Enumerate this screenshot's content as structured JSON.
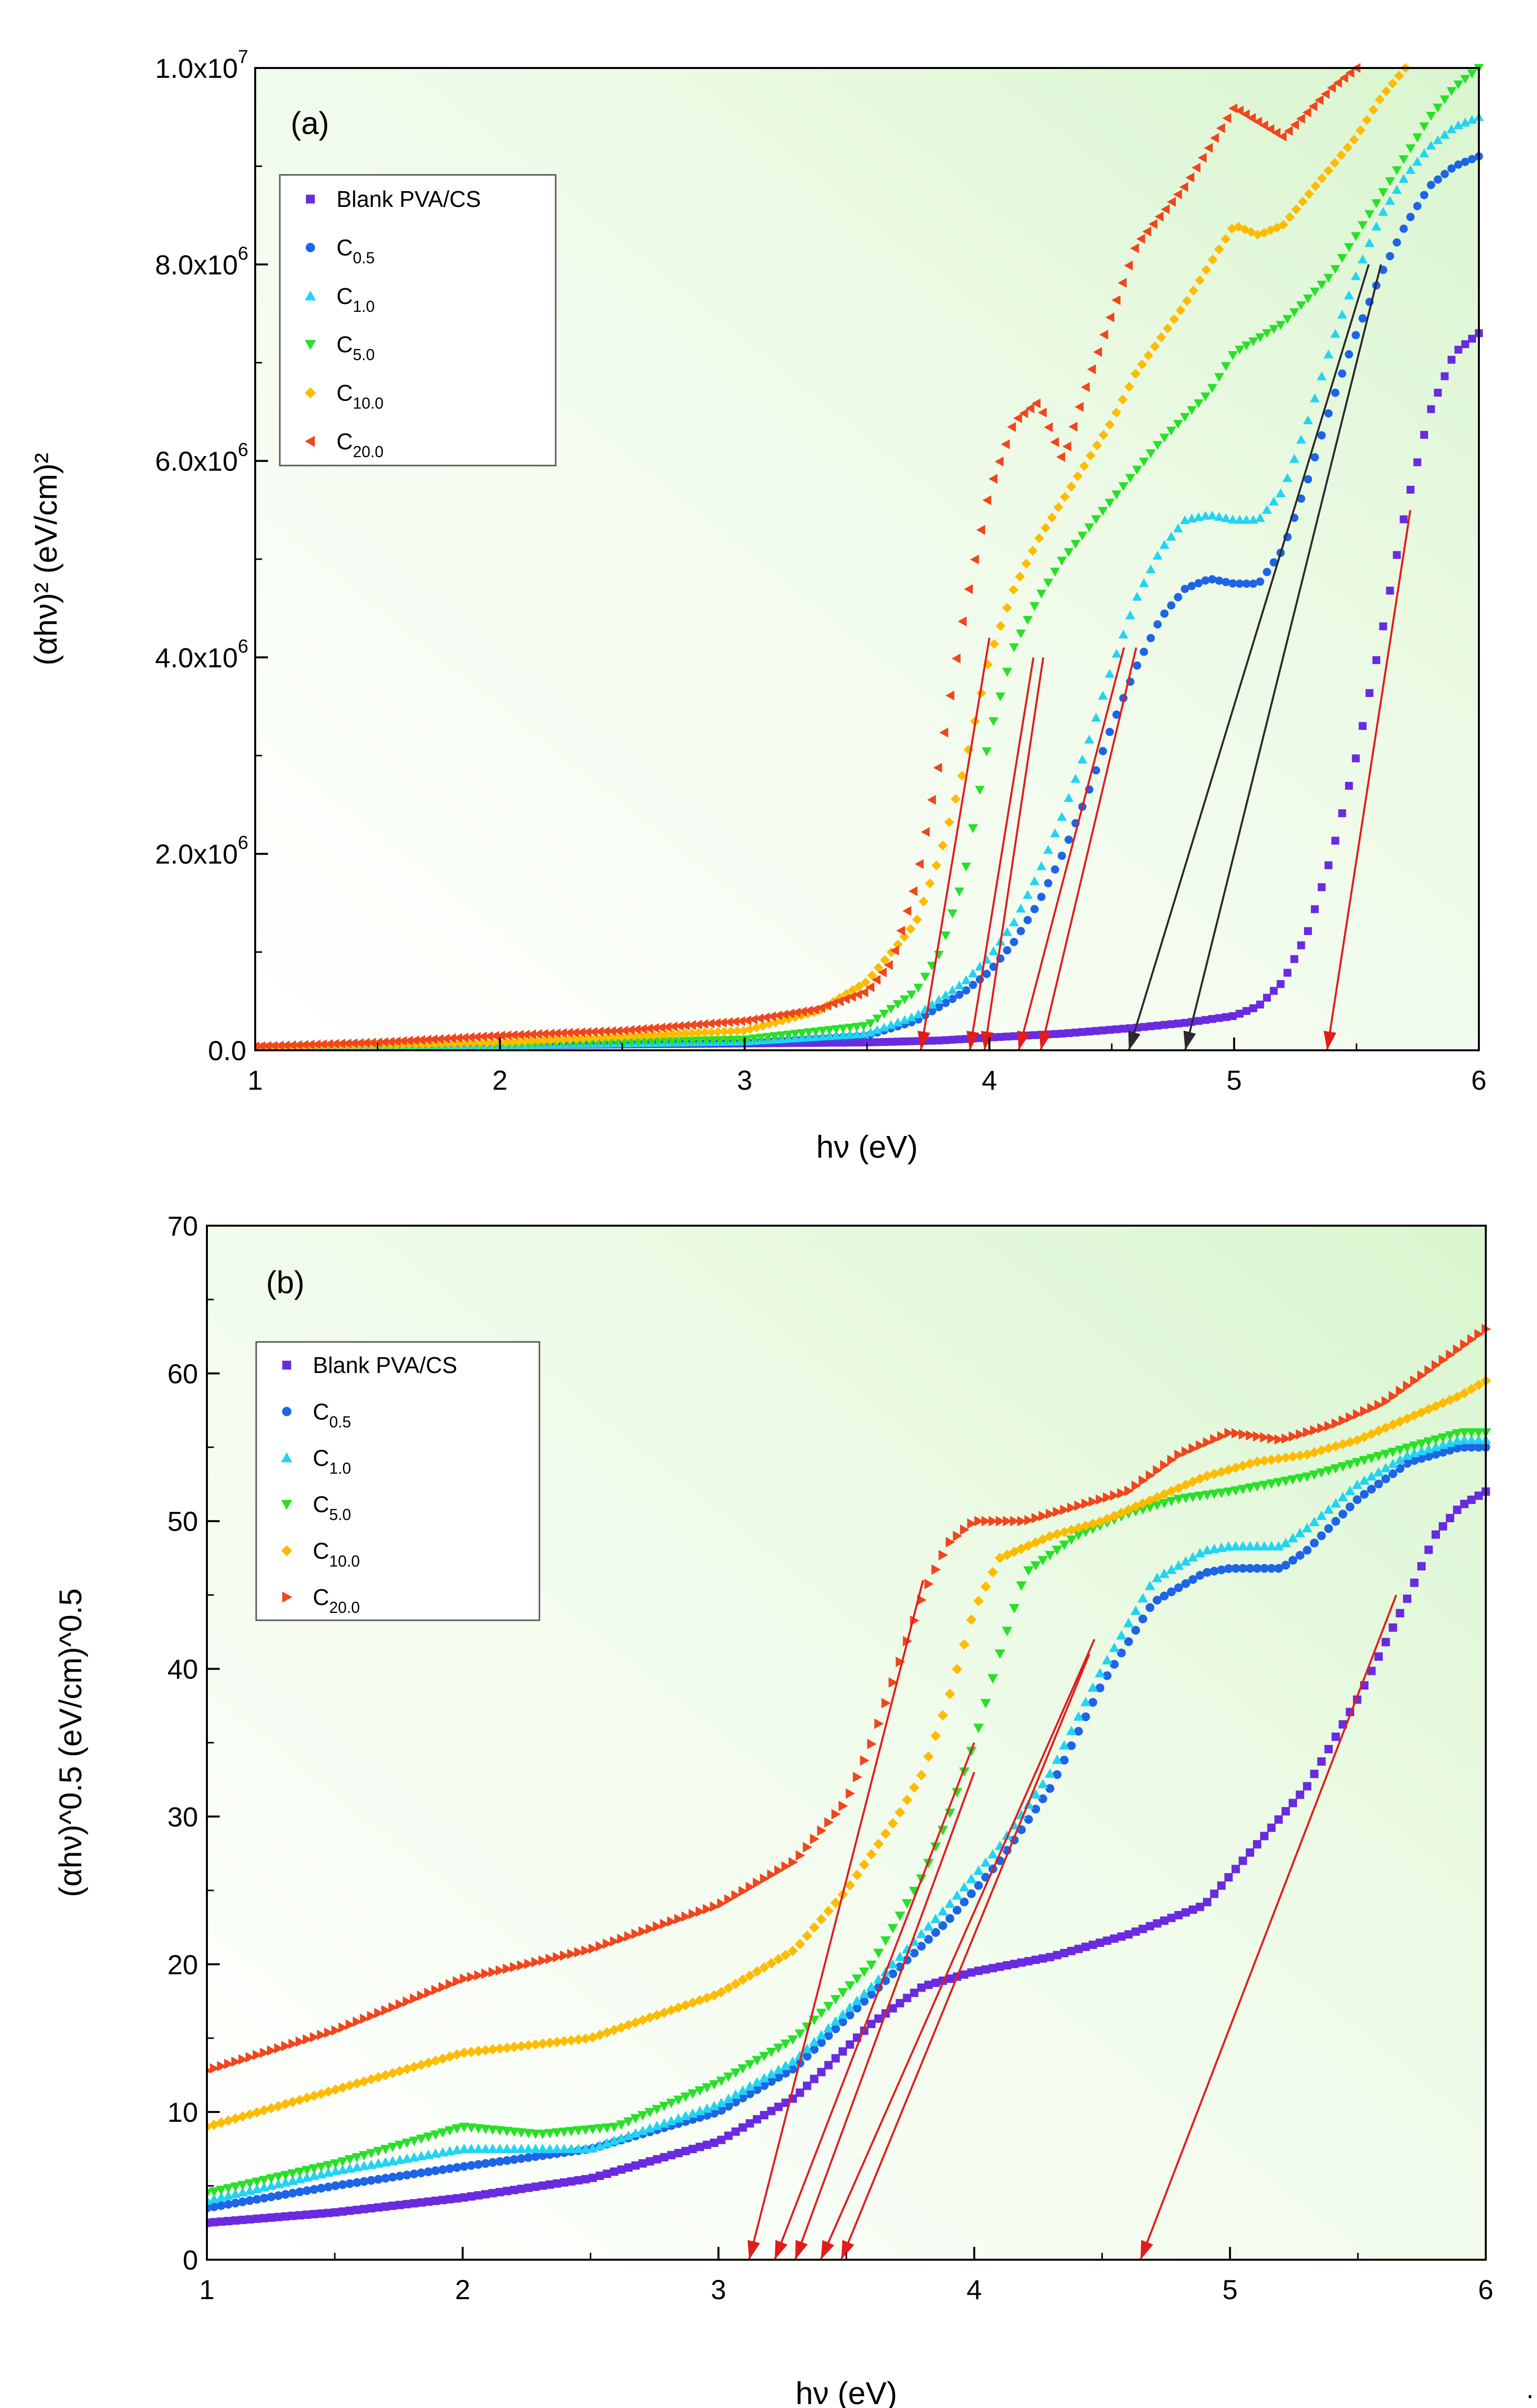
{
  "figure_trailing_mark": ".",
  "chart_data": [
    {
      "type": "scatter",
      "panel_label": "(a)",
      "xlabel": "hν (eV)",
      "ylabel": "(αhν)² (eV/cm)²",
      "xlim": [
        1,
        6
      ],
      "ylim": [
        0,
        10000000
      ],
      "x_ticks": [
        "1",
        "2",
        "3",
        "4",
        "5",
        "6"
      ],
      "y_ticks": [
        {
          "value": 0,
          "mant": "0.0",
          "exp": ""
        },
        {
          "value": 2000000,
          "mant": "2.0x10",
          "exp": "6"
        },
        {
          "value": 4000000,
          "mant": "4.0x10",
          "exp": "6"
        },
        {
          "value": 6000000,
          "mant": "6.0x10",
          "exp": "6"
        },
        {
          "value": 8000000,
          "mant": "8.0x10",
          "exp": "6"
        },
        {
          "value": 10000000,
          "mant": "1.0x10",
          "exp": "7"
        }
      ],
      "legend_position": "top-left",
      "series": [
        {
          "name": "Blank PVA/CS",
          "base": "Blank PVA/CS",
          "sub": "",
          "color": "#6a2be0",
          "marker": "square",
          "x": [
            1.0,
            1.5,
            2.0,
            2.5,
            3.0,
            3.5,
            3.8,
            4.0,
            4.3,
            4.6,
            4.8,
            5.0,
            5.1,
            5.2,
            5.3,
            5.4,
            5.5,
            5.6,
            5.7,
            5.8,
            5.9,
            6.0
          ],
          "y": [
            30000,
            40000,
            50000,
            60000,
            70000,
            80000,
            100000,
            130000,
            170000,
            230000,
            280000,
            350000,
            450000,
            700000,
            1200000,
            2000000,
            3000000,
            4200000,
            5500000,
            6500000,
            7100000,
            7300000
          ]
        },
        {
          "name": "C0.5",
          "base": "C",
          "sub": "0.5",
          "color": "#1e64e6",
          "marker": "circle",
          "x": [
            1.0,
            2.0,
            3.0,
            3.5,
            3.7,
            3.9,
            4.0,
            4.1,
            4.2,
            4.3,
            4.4,
            4.5,
            4.6,
            4.7,
            4.8,
            4.9,
            5.0,
            5.1,
            5.2,
            5.3,
            5.4,
            5.5,
            5.6,
            5.7,
            5.8,
            5.9,
            6.0
          ],
          "y": [
            30000,
            50000,
            80000,
            150000,
            300000,
            600000,
            800000,
            1100000,
            1500000,
            2000000,
            2600000,
            3300000,
            3900000,
            4400000,
            4700000,
            4800000,
            4750000,
            4750000,
            5100000,
            5800000,
            6600000,
            7300000,
            7900000,
            8400000,
            8800000,
            9000000,
            9100000
          ]
        },
        {
          "name": "C1.0",
          "base": "C",
          "sub": "1.0",
          "color": "#22d4f2",
          "marker": "triangle-up",
          "x": [
            1.0,
            2.0,
            3.0,
            3.5,
            3.7,
            3.9,
            4.0,
            4.1,
            4.2,
            4.3,
            4.4,
            4.5,
            4.6,
            4.7,
            4.8,
            4.9,
            5.0,
            5.1,
            5.2,
            5.3,
            5.4,
            5.5,
            5.6,
            5.7,
            5.8,
            5.9,
            6.0
          ],
          "y": [
            30000,
            50000,
            90000,
            170000,
            350000,
            700000,
            950000,
            1300000,
            1800000,
            2400000,
            3100000,
            3900000,
            4600000,
            5100000,
            5400000,
            5450000,
            5400000,
            5400000,
            5700000,
            6400000,
            7200000,
            7900000,
            8500000,
            8900000,
            9200000,
            9400000,
            9500000
          ]
        },
        {
          "name": "C5.0",
          "base": "C",
          "sub": "5.0",
          "color": "#28e028",
          "marker": "triangle-down",
          "x": [
            1.0,
            2.0,
            3.0,
            3.5,
            3.7,
            3.8,
            3.9,
            4.0,
            4.1,
            4.2,
            4.3,
            4.5,
            4.7,
            4.9,
            5.0,
            5.2,
            5.4,
            5.6,
            5.8,
            5.9,
            6.0
          ],
          "y": [
            30000,
            60000,
            110000,
            250000,
            600000,
            1000000,
            1800000,
            3200000,
            4100000,
            4600000,
            5000000,
            5600000,
            6200000,
            6700000,
            7100000,
            7400000,
            7900000,
            8700000,
            9500000,
            9800000,
            10000000
          ]
        },
        {
          "name": "C10.0",
          "base": "C",
          "sub": "10.0",
          "color": "#ffbb00",
          "marker": "diamond",
          "x": [
            1.0,
            2.0,
            3.0,
            3.3,
            3.5,
            3.7,
            3.8,
            3.9,
            4.0,
            4.1,
            4.2,
            4.3,
            4.4,
            4.5,
            4.6,
            4.8,
            5.0,
            5.1,
            5.2,
            5.4,
            5.5,
            5.6,
            5.7
          ],
          "y": [
            30000,
            80000,
            200000,
            400000,
            700000,
            1300000,
            2000000,
            2900000,
            4000000,
            4700000,
            5200000,
            5600000,
            6000000,
            6400000,
            6900000,
            7600000,
            8400000,
            8300000,
            8400000,
            9000000,
            9300000,
            9700000,
            10000000
          ]
        },
        {
          "name": "C20.0",
          "base": "C",
          "sub": "20.0",
          "color": "#f0461e",
          "marker": "triangle-left",
          "x": [
            1.0,
            1.5,
            2.0,
            2.5,
            3.0,
            3.3,
            3.5,
            3.6,
            3.7,
            3.8,
            3.9,
            4.0,
            4.1,
            4.2,
            4.3,
            4.4,
            4.5,
            4.6,
            4.8,
            5.0,
            5.2,
            5.4,
            5.5
          ],
          "y": [
            40000,
            80000,
            150000,
            200000,
            300000,
            420000,
            600000,
            900000,
            1700000,
            3000000,
            4500000,
            5700000,
            6400000,
            6600000,
            6000000,
            6800000,
            7500000,
            8200000,
            8800000,
            9600000,
            9300000,
            9800000,
            10000000
          ]
        }
      ],
      "tangent_lines": [
        {
          "color": "#e11c1c",
          "from": [
            4.0,
            4200000
          ],
          "to": [
            3.72,
            0
          ]
        },
        {
          "color": "#e11c1c",
          "from": [
            4.18,
            4000000
          ],
          "to": [
            3.92,
            0
          ]
        },
        {
          "color": "#e11c1c",
          "from": [
            4.22,
            4000000
          ],
          "to": [
            3.98,
            0
          ]
        },
        {
          "color": "#e11c1c",
          "from": [
            4.55,
            4100000
          ],
          "to": [
            4.12,
            0
          ]
        },
        {
          "color": "#e11c1c",
          "from": [
            4.6,
            4100000
          ],
          "to": [
            4.21,
            0
          ]
        },
        {
          "color": "#e11c1c",
          "from": [
            5.72,
            5500000
          ],
          "to": [
            5.38,
            0
          ]
        },
        {
          "color": "#2a2a2a",
          "from": [
            5.55,
            8000000
          ],
          "to": [
            4.57,
            0
          ]
        },
        {
          "color": "#2a2a2a",
          "from": [
            5.6,
            8000000
          ],
          "to": [
            4.8,
            0
          ]
        }
      ]
    },
    {
      "type": "scatter",
      "panel_label": "(b)",
      "xlabel": "hν (eV)",
      "ylabel": "(αhν)^0.5 (eV/cm)^0.5",
      "xlim": [
        1,
        6
      ],
      "ylim": [
        0,
        70
      ],
      "x_ticks": [
        "1",
        "2",
        "3",
        "4",
        "5",
        "6"
      ],
      "y_ticks": [
        {
          "value": 0,
          "mant": "0",
          "exp": ""
        },
        {
          "value": 10,
          "mant": "10",
          "exp": ""
        },
        {
          "value": 20,
          "mant": "20",
          "exp": ""
        },
        {
          "value": 30,
          "mant": "30",
          "exp": ""
        },
        {
          "value": 40,
          "mant": "40",
          "exp": ""
        },
        {
          "value": 50,
          "mant": "50",
          "exp": ""
        },
        {
          "value": 60,
          "mant": "60",
          "exp": ""
        },
        {
          "value": 70,
          "mant": "70",
          "exp": ""
        }
      ],
      "legend_position": "top-left",
      "series": [
        {
          "name": "Blank PVA/CS",
          "base": "Blank PVA/CS",
          "sub": "",
          "color": "#6a2be0",
          "marker": "square",
          "x": [
            1.0,
            1.5,
            2.0,
            2.5,
            3.0,
            3.3,
            3.6,
            3.8,
            4.0,
            4.3,
            4.6,
            4.9,
            5.1,
            5.3,
            5.5,
            5.7,
            5.8,
            5.9,
            6.0
          ],
          "y": [
            2.5,
            3.2,
            4.2,
            5.5,
            8.0,
            11.0,
            16.0,
            18.5,
            19.5,
            20.5,
            22.0,
            24.0,
            28.0,
            32.0,
            38.0,
            45.0,
            49.0,
            51.0,
            52.0
          ]
        },
        {
          "name": "C0.5",
          "base": "C",
          "sub": "0.5",
          "color": "#1e64e6",
          "marker": "circle",
          "x": [
            1.0,
            1.5,
            2.0,
            2.5,
            3.0,
            3.3,
            3.6,
            3.9,
            4.1,
            4.3,
            4.5,
            4.7,
            4.9,
            5.0,
            5.2,
            5.3,
            5.5,
            5.7,
            5.9,
            6.0
          ],
          "y": [
            3.5,
            5.0,
            6.3,
            7.5,
            10.0,
            13.0,
            18.0,
            23.0,
            27.0,
            32.0,
            39.0,
            44.5,
            46.5,
            46.8,
            46.8,
            48.0,
            51.5,
            54.0,
            55.0,
            55.0
          ]
        },
        {
          "name": "C1.0",
          "base": "C",
          "sub": "1.0",
          "color": "#22d4f2",
          "marker": "triangle-up",
          "x": [
            1.0,
            1.5,
            2.0,
            2.5,
            3.0,
            3.3,
            3.6,
            3.9,
            4.1,
            4.3,
            4.5,
            4.7,
            4.9,
            5.0,
            5.2,
            5.3,
            5.5,
            5.7,
            5.9,
            6.0
          ],
          "y": [
            4.0,
            6.0,
            7.5,
            7.5,
            10.5,
            13.5,
            18.5,
            24.0,
            28.0,
            33.0,
            40.0,
            46.0,
            48.0,
            48.3,
            48.3,
            49.5,
            52.5,
            54.5,
            55.5,
            55.5
          ]
        },
        {
          "name": "C5.0",
          "base": "C",
          "sub": "5.0",
          "color": "#28e028",
          "marker": "triangle-down",
          "x": [
            1.0,
            1.5,
            2.0,
            2.3,
            2.6,
            3.0,
            3.3,
            3.6,
            3.8,
            3.9,
            4.0,
            4.1,
            4.2,
            4.4,
            4.6,
            4.8,
            5.0,
            5.3,
            5.6,
            5.9,
            6.0
          ],
          "y": [
            4.5,
            6.5,
            9.0,
            8.5,
            9.0,
            12.0,
            15.0,
            20.0,
            26.0,
            30.0,
            35.0,
            41.0,
            46.5,
            49.0,
            50.5,
            51.5,
            52.0,
            53.0,
            54.5,
            56.0,
            56.0
          ]
        },
        {
          "name": "C10.0",
          "base": "C",
          "sub": "10.0",
          "color": "#ffbb00",
          "marker": "diamond",
          "x": [
            1.0,
            1.5,
            2.0,
            2.5,
            3.0,
            3.3,
            3.5,
            3.7,
            3.8,
            3.9,
            4.0,
            4.1,
            4.3,
            4.5,
            4.7,
            4.9,
            5.1,
            5.3,
            5.5,
            5.7,
            5.9,
            6.0
          ],
          "y": [
            9.0,
            11.5,
            14.0,
            15.0,
            18.0,
            21.0,
            25.0,
            30.0,
            33.0,
            38.0,
            44.0,
            47.5,
            49.0,
            50.0,
            51.5,
            53.0,
            54.0,
            54.5,
            55.5,
            57.0,
            58.5,
            59.5
          ]
        },
        {
          "name": "C20.0",
          "base": "C",
          "sub": "20.0",
          "color": "#f0461e",
          "marker": "triangle-right",
          "x": [
            1.0,
            1.5,
            2.0,
            2.5,
            3.0,
            3.3,
            3.5,
            3.6,
            3.7,
            3.8,
            3.9,
            4.0,
            4.2,
            4.4,
            4.6,
            4.8,
            5.0,
            5.2,
            5.4,
            5.6,
            5.8,
            6.0
          ],
          "y": [
            12.8,
            15.5,
            19.0,
            21.0,
            24.0,
            27.0,
            31.0,
            35.0,
            40.0,
            45.0,
            48.5,
            50.0,
            50.0,
            51.0,
            52.0,
            54.5,
            56.0,
            55.5,
            56.5,
            58.0,
            60.5,
            63.0
          ]
        }
      ],
      "tangent_lines": [
        {
          "color": "#e11c1c",
          "from": [
            3.8,
            46.0
          ],
          "to": [
            3.12,
            0
          ]
        },
        {
          "color": "#e11c1c",
          "from": [
            4.0,
            35.0
          ],
          "to": [
            3.22,
            0
          ]
        },
        {
          "color": "#e11c1c",
          "from": [
            4.0,
            33.0
          ],
          "to": [
            3.3,
            0
          ]
        },
        {
          "color": "#e11c1c",
          "from": [
            4.47,
            42.0
          ],
          "to": [
            3.4,
            0
          ]
        },
        {
          "color": "#e11c1c",
          "from": [
            4.45,
            41.0
          ],
          "to": [
            3.48,
            0
          ]
        },
        {
          "color": "#e11c1c",
          "from": [
            5.65,
            45.0
          ],
          "to": [
            4.65,
            0
          ]
        }
      ]
    }
  ]
}
